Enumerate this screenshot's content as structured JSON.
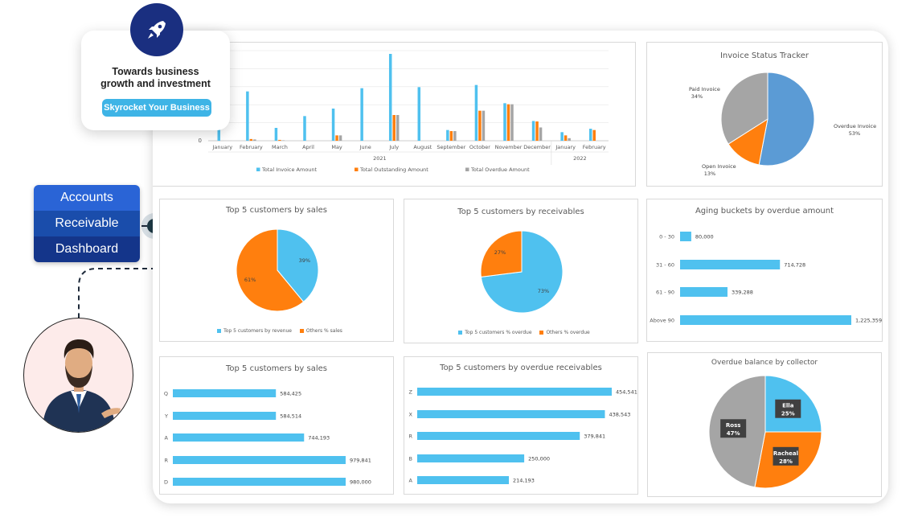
{
  "promo": {
    "title_line1": "Towards business",
    "title_line2": "growth and investment",
    "button_label": "Skyrocket Your Business",
    "logo_icon": "rocket-icon",
    "logo_color": "#1a2f80",
    "button_color": "#3eb4e6"
  },
  "side_label": {
    "line1": "Accounts",
    "line2": "Receivable",
    "line3": "Dashboard",
    "colors": [
      "#2a64d6",
      "#1a4dab",
      "#14358a"
    ]
  },
  "avatar": {
    "icon": "businessman-avatar-icon"
  },
  "colors": {
    "blue": "#4fc1ef",
    "orange": "#ff7f0e",
    "gray": "#a5a5a5",
    "dark_blue": "#5b9bd5",
    "panel_border": "#d9d9d9"
  },
  "chart_data": [
    {
      "id": "monthly",
      "type": "bar",
      "title": "",
      "categories": [
        "January",
        "February",
        "March",
        "April",
        "May",
        "June",
        "July",
        "August",
        "September",
        "October",
        "November",
        "December",
        "January",
        "February"
      ],
      "category_groups": [
        {
          "label": "2021",
          "count": 12
        },
        {
          "label": "2022",
          "count": 2
        }
      ],
      "ytick_labels": [
        "0"
      ],
      "ylim": [
        0,
        420000
      ],
      "series": [
        {
          "name": "Total Invoice Amount",
          "color": "#4fc1ef",
          "values": [
            60000,
            230000,
            60000,
            115000,
            150000,
            245000,
            405000,
            250000,
            50000,
            260000,
            175000,
            92000,
            40000,
            56000
          ]
        },
        {
          "name": "Total Outstanding Amount",
          "color": "#ff7f0e",
          "values": [
            0,
            8000,
            4000,
            0,
            25000,
            0,
            120000,
            0,
            45000,
            140000,
            170000,
            90000,
            25000,
            50000
          ]
        },
        {
          "name": "Total Overdue Amount",
          "color": "#a5a5a5",
          "values": [
            0,
            6000,
            2000,
            0,
            25000,
            0,
            120000,
            0,
            45000,
            140000,
            170000,
            62000,
            12000,
            0
          ]
        }
      ],
      "grid": true,
      "legend": "bottom"
    },
    {
      "id": "status",
      "type": "pie",
      "title": "Invoice Status Tracker",
      "slices": [
        {
          "label": "Overdue Invoice",
          "pct_label": "53%",
          "value": 53,
          "color": "#5b9bd5"
        },
        {
          "label": "Open Invoice",
          "pct_label": "13%",
          "value": 13,
          "color": "#ff7f0e"
        },
        {
          "label": "Paid Invoice",
          "pct_label": "34%",
          "value": 34,
          "color": "#a5a5a5"
        }
      ]
    },
    {
      "id": "sales_pie",
      "type": "pie",
      "title": "Top 5 customers by sales",
      "slices": [
        {
          "label": "Top 5 customers by revenue",
          "pct_label": "39%",
          "value": 39,
          "color": "#4fc1ef"
        },
        {
          "label": "Others % sales",
          "pct_label": "61%",
          "value": 61,
          "color": "#ff7f0e"
        }
      ],
      "legend": "bottom"
    },
    {
      "id": "receivables_pie",
      "type": "pie",
      "title": "Top 5 customers by receivables",
      "slices": [
        {
          "label": "Top 5 customers % overdue",
          "pct_label": "73%",
          "value": 73,
          "color": "#4fc1ef"
        },
        {
          "label": "Others % overdue",
          "pct_label": "27%",
          "value": 27,
          "color": "#ff7f0e"
        }
      ],
      "legend": "bottom"
    },
    {
      "id": "aging",
      "type": "bar",
      "orientation": "horizontal",
      "title": "Aging buckets by overdue amount",
      "categories": [
        "0 - 30",
        "31 - 60",
        "61 - 90",
        "Above 90"
      ],
      "values": [
        80000,
        714728,
        339288,
        1225359
      ],
      "value_labels": [
        "80,000",
        "714,728",
        "339,288",
        "1,225,359"
      ],
      "xlim": [
        0,
        1225359
      ],
      "color": "#4fc1ef"
    },
    {
      "id": "sales_bar",
      "type": "bar",
      "orientation": "horizontal",
      "title": "Top 5 customers by sales",
      "categories": [
        "Q",
        "Y",
        "A",
        "R",
        "D"
      ],
      "values": [
        584425,
        584514,
        744193,
        979841,
        980000
      ],
      "value_labels": [
        "584,425",
        "584,514",
        "744,193",
        "979,841",
        "980,000"
      ],
      "xlim": [
        0,
        980000
      ],
      "color": "#4fc1ef"
    },
    {
      "id": "overdue_bar",
      "type": "bar",
      "orientation": "horizontal",
      "title": "Top 5 customers by overdue receivables",
      "categories": [
        "Z",
        "X",
        "R",
        "B",
        "A"
      ],
      "values": [
        454541,
        438543,
        379841,
        250000,
        214193
      ],
      "value_labels": [
        "454,541",
        "438,543",
        "379,841",
        "250,000",
        "214,193"
      ],
      "xlim": [
        0,
        454541
      ],
      "color": "#4fc1ef"
    },
    {
      "id": "collector",
      "type": "pie",
      "title": "Overdue balance by collector",
      "slices": [
        {
          "label": "Ella",
          "pct_label": "25%",
          "value": 25,
          "color": "#4fc1ef"
        },
        {
          "label": "Racheal",
          "pct_label": "28%",
          "value": 28,
          "color": "#ff7f0e"
        },
        {
          "label": "Ross",
          "pct_label": "47%",
          "value": 47,
          "color": "#a5a5a5"
        }
      ]
    }
  ]
}
